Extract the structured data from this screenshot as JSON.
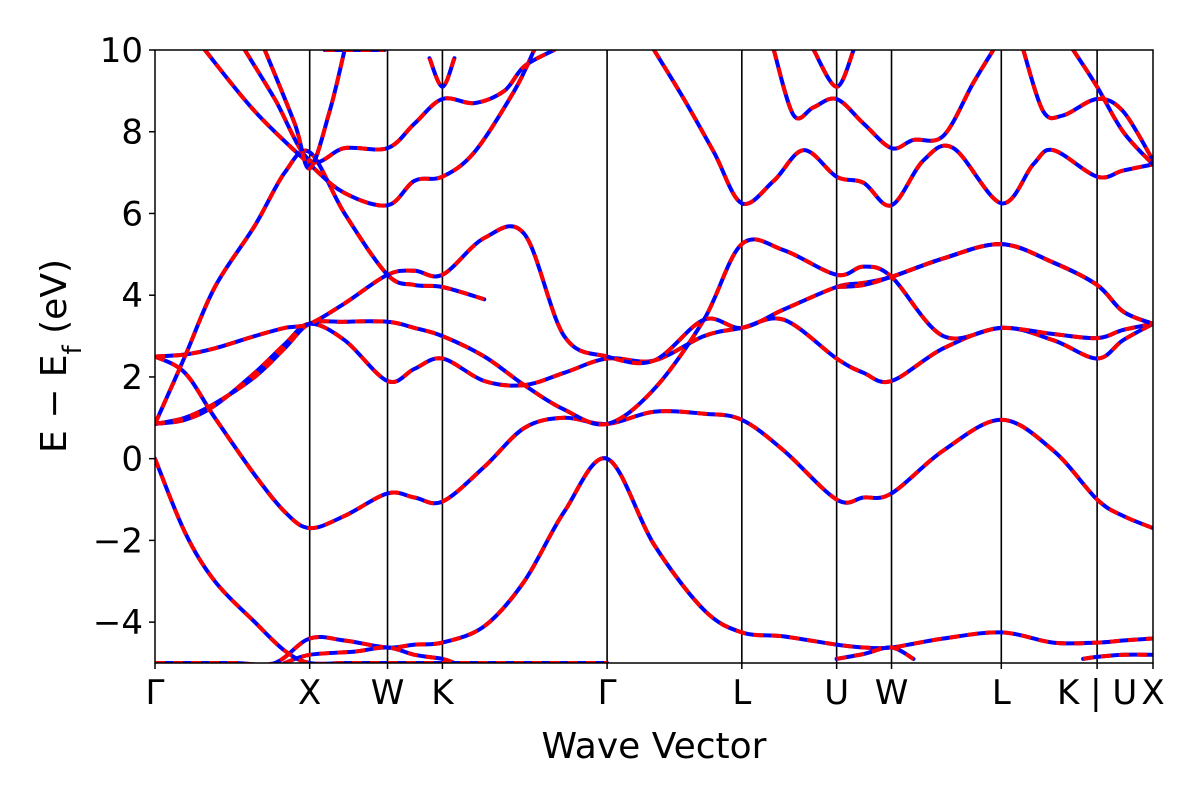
{
  "chart_data": {
    "type": "line",
    "title": "",
    "xlabel": "Wave Vector",
    "ylabel": "E − E_f (eV)",
    "ylim": [
      -5,
      10
    ],
    "yticks": [
      -4,
      -2,
      0,
      2,
      4,
      6,
      8,
      10
    ],
    "xlim": [
      0,
      1
    ],
    "grid": false,
    "high_symmetry_points": [
      {
        "label": "Γ",
        "x": 0.0
      },
      {
        "label": "X",
        "x": 0.155
      },
      {
        "label": "W",
        "x": 0.233
      },
      {
        "label": "K",
        "x": 0.288
      },
      {
        "label": "Γ",
        "x": 0.453
      },
      {
        "label": "L",
        "x": 0.588
      },
      {
        "label": "U",
        "x": 0.683
      },
      {
        "label": "W",
        "x": 0.738
      },
      {
        "label": "L",
        "x": 0.848
      },
      {
        "label": "K | U",
        "x": 0.944
      },
      {
        "label": "X",
        "x": 1.0
      }
    ],
    "series_style": [
      {
        "color": "#0000ff",
        "dash": "none",
        "width": 4
      },
      {
        "color": "#ff0000",
        "dash": "10,8",
        "width": 4
      }
    ],
    "series": [
      {
        "x": [
          0.0,
          0.04,
          0.08,
          0.12,
          0.155,
          0.19,
          0.233,
          0.26,
          0.288,
          0.33,
          0.37,
          0.41,
          0.453,
          0.5,
          0.55,
          0.588,
          0.63,
          0.683,
          0.71,
          0.738,
          0.79,
          0.848,
          0.9,
          0.944,
          0.97,
          1.0
        ],
        "y": [
          -5.0,
          -5.0,
          -5.0,
          -5.0,
          -4.4,
          -4.45,
          -4.62,
          -4.55,
          -4.5,
          -4.1,
          -3.0,
          -1.3,
          0.0,
          -2.1,
          -3.7,
          -4.25,
          -4.35,
          -4.55,
          -4.62,
          -4.62,
          -4.4,
          -4.25,
          -4.5,
          -4.5,
          -4.45,
          -4.4
        ]
      },
      {
        "x": [
          0.13,
          0.155,
          0.2,
          0.233,
          0.26,
          0.288,
          0.3
        ],
        "y": [
          -5.0,
          -4.8,
          -4.72,
          -4.62,
          -4.8,
          -4.9,
          -5.0
        ]
      },
      {
        "x": [
          0.683,
          0.71,
          0.738,
          0.76
        ],
        "y": [
          -4.9,
          -4.78,
          -4.62,
          -4.9
        ]
      },
      {
        "x": [
          0.93,
          0.944,
          0.97,
          1.0
        ],
        "y": [
          -4.9,
          -4.85,
          -4.8,
          -4.8
        ]
      },
      {
        "x": [
          0.0,
          0.03,
          0.06,
          0.1,
          0.13,
          0.155,
          0.19,
          0.233,
          0.26,
          0.288,
          0.33,
          0.37,
          0.41,
          0.453
        ],
        "y": [
          0.0,
          -1.8,
          -3.0,
          -4.0,
          -4.7,
          -5.0,
          -5.0,
          -5.0,
          -5.0,
          -5.0,
          -5.0,
          -5.0,
          -5.0,
          -5.0
        ]
      },
      {
        "x": [
          0.0,
          0.03,
          0.06,
          0.1,
          0.13,
          0.155,
          0.19,
          0.233,
          0.26,
          0.288,
          0.33,
          0.37,
          0.41,
          0.453,
          0.5,
          0.55,
          0.588,
          0.63,
          0.683,
          0.71,
          0.738,
          0.79,
          0.848,
          0.9,
          0.944,
          0.97,
          1.0
        ],
        "y": [
          2.5,
          2.1,
          1.0,
          -0.4,
          -1.3,
          -1.7,
          -1.4,
          -0.85,
          -0.95,
          -1.05,
          -0.2,
          0.75,
          1.0,
          0.85,
          1.15,
          1.1,
          0.95,
          0.2,
          -1.0,
          -0.95,
          -0.85,
          0.2,
          0.95,
          0.2,
          -1.0,
          -1.4,
          -1.7
        ]
      },
      {
        "x": [
          0.0,
          0.03,
          0.06,
          0.1,
          0.13,
          0.155,
          0.19,
          0.233,
          0.26,
          0.288,
          0.33,
          0.37,
          0.41,
          0.453,
          0.5,
          0.55,
          0.588,
          0.63,
          0.683,
          0.71,
          0.738,
          0.79,
          0.848,
          0.9,
          0.944,
          0.97,
          1.0
        ],
        "y": [
          0.85,
          0.95,
          1.3,
          2.1,
          2.8,
          3.3,
          2.9,
          1.9,
          2.2,
          2.45,
          1.9,
          1.8,
          2.1,
          2.45,
          2.4,
          3.0,
          3.2,
          3.4,
          2.45,
          2.1,
          1.9,
          2.7,
          3.2,
          2.9,
          2.45,
          2.9,
          3.3
        ]
      },
      {
        "x": [
          0.0,
          0.03,
          0.06,
          0.1,
          0.13,
          0.155,
          0.19,
          0.233,
          0.26,
          0.288,
          0.33,
          0.37,
          0.41,
          0.453,
          0.5,
          0.55,
          0.588,
          0.63,
          0.683,
          0.71,
          0.738,
          0.79,
          0.848,
          0.9,
          0.944,
          0.97,
          1.0
        ],
        "y": [
          0.85,
          1.0,
          1.35,
          2.0,
          2.7,
          3.3,
          3.35,
          3.35,
          3.2,
          3.0,
          2.5,
          1.8,
          1.2,
          0.85,
          1.7,
          3.4,
          5.25,
          5.1,
          4.5,
          4.7,
          4.45,
          3.0,
          3.2,
          3.05,
          2.95,
          3.15,
          3.3
        ]
      },
      {
        "x": [
          0.0,
          0.03,
          0.06,
          0.1,
          0.13,
          0.155,
          0.19,
          0.233,
          0.26,
          0.288,
          0.33,
          0.37,
          0.41,
          0.453,
          0.5,
          0.55,
          0.588,
          0.63,
          0.683,
          0.71,
          0.738,
          0.79,
          0.848,
          0.9,
          0.944,
          0.97,
          1.0
        ],
        "y": [
          2.5,
          2.55,
          2.7,
          3.0,
          3.2,
          3.3,
          3.8,
          4.5,
          4.6,
          4.5,
          5.4,
          5.5,
          3.0,
          2.5,
          2.4,
          3.4,
          3.2,
          3.65,
          4.2,
          4.3,
          4.45,
          4.9,
          5.25,
          4.8,
          4.25,
          3.6,
          3.3
        ]
      },
      {
        "x": [
          0.0,
          0.03,
          0.06,
          0.1,
          0.13,
          0.155,
          0.19,
          0.233,
          0.26,
          0.288,
          0.33
        ],
        "y": [
          0.85,
          2.5,
          4.2,
          5.7,
          7.0,
          7.5,
          6.0,
          4.5,
          4.25,
          4.2,
          3.9
        ]
      },
      {
        "x": [
          0.683,
          0.71,
          0.738,
          0.79,
          0.848,
          0.9,
          0.944,
          0.97,
          1.0
        ],
        "y": [
          4.2,
          4.25,
          4.45,
          4.9,
          5.25,
          4.8,
          4.25,
          3.6,
          3.3
        ]
      },
      {
        "x": [
          0.05,
          0.1,
          0.155,
          0.19,
          0.233,
          0.26,
          0.288,
          0.32,
          0.36,
          0.38
        ],
        "y": [
          10.0,
          8.5,
          7.2,
          6.5,
          6.2,
          6.8,
          6.9,
          7.5,
          9.0,
          10.0
        ]
      },
      {
        "x": [
          0.09,
          0.12,
          0.155,
          0.19,
          0.233,
          0.26,
          0.288,
          0.32,
          0.35,
          0.37,
          0.4
        ],
        "y": [
          10.0,
          8.8,
          7.3,
          7.6,
          7.6,
          8.2,
          8.8,
          8.7,
          9.0,
          9.6,
          10.0
        ]
      },
      {
        "x": [
          0.11,
          0.14,
          0.155,
          0.175,
          0.19
        ],
        "y": [
          10.0,
          8.2,
          7.1,
          8.5,
          10.0
        ]
      },
      {
        "x": [
          0.17,
          0.2,
          0.23
        ],
        "y": [
          10.0,
          10.0,
          10.0
        ]
      },
      {
        "x": [
          0.275,
          0.288,
          0.3
        ],
        "y": [
          9.8,
          9.1,
          9.8
        ]
      },
      {
        "x": [
          0.5,
          0.53,
          0.56,
          0.588,
          0.62,
          0.65,
          0.683,
          0.71,
          0.738,
          0.77,
          0.8,
          0.848,
          0.88,
          0.9,
          0.944,
          0.97,
          1.0
        ],
        "y": [
          10.0,
          8.8,
          7.5,
          6.25,
          6.8,
          7.55,
          6.9,
          6.75,
          6.2,
          7.3,
          7.6,
          6.25,
          7.2,
          7.55,
          6.9,
          7.05,
          7.2
        ]
      },
      {
        "x": [
          0.62,
          0.64,
          0.66,
          0.683,
          0.71,
          0.738,
          0.76,
          0.79,
          0.82,
          0.84
        ],
        "y": [
          10.0,
          8.4,
          8.6,
          8.8,
          8.2,
          7.6,
          7.8,
          7.9,
          9.2,
          10.0
        ]
      },
      {
        "x": [
          0.66,
          0.683,
          0.7
        ],
        "y": [
          10.0,
          9.1,
          10.0
        ]
      },
      {
        "x": [
          0.87,
          0.89,
          0.91,
          0.944,
          0.97,
          1.0
        ],
        "y": [
          10.0,
          8.5,
          8.4,
          8.8,
          8.5,
          7.3
        ]
      },
      {
        "x": [
          0.92,
          0.944,
          0.97,
          1.0
        ],
        "y": [
          10.0,
          9.1,
          8.0,
          7.2
        ]
      }
    ]
  }
}
